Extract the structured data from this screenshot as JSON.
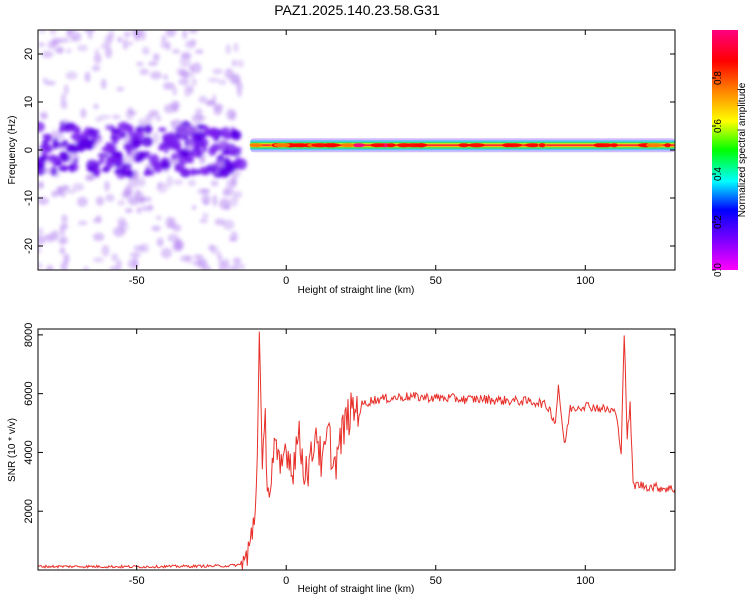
{
  "title": "PAZ1.2025.140.23.58.G31",
  "chart_data": [
    {
      "type": "heatmap",
      "xlabel": "Height of straight line (km)",
      "ylabel": "Frequency (Hz)",
      "xlim": [
        -83,
        130
      ],
      "ylim": [
        -25,
        25
      ],
      "x_ticks": [
        -50,
        0,
        50,
        100
      ],
      "y_ticks": [
        -20,
        -10,
        0,
        10,
        20
      ],
      "colorbar": {
        "label": "Normalized spectral amplitude",
        "range": [
          0,
          1
        ],
        "ticks": [
          0.0,
          0.2,
          0.4,
          0.6,
          0.8
        ],
        "colors": [
          "#ff00ff",
          "#8000ff",
          "#0000ff",
          "#00ffff",
          "#00ff00",
          "#ffff00",
          "#ff8000",
          "#ff0000",
          "#ff0080"
        ]
      },
      "noise_region": {
        "x_range": [
          -83,
          -15
        ],
        "frequency_spread_hz": [
          -25,
          25
        ],
        "concentrated_band_hz": [
          -5,
          5
        ],
        "amplitude_range": [
          0.05,
          0.4
        ]
      },
      "signal_line": {
        "x_range": [
          -12,
          130
        ],
        "frequency_hz": 1,
        "amplitude": 0.85
      }
    },
    {
      "type": "line",
      "xlabel": "Height of straight line (km)",
      "ylabel": "SNR (10 * v/v)",
      "xlim": [
        -83,
        130
      ],
      "ylim": [
        0,
        8200
      ],
      "x_ticks": [
        -50,
        0,
        50,
        100
      ],
      "y_ticks": [
        2000,
        4000,
        6000,
        8000
      ],
      "series": [
        {
          "color": "#e8302a",
          "x": [
            -83,
            -70,
            -50,
            -30,
            -20,
            -15,
            -13,
            -12,
            -11,
            -10,
            -9,
            -8,
            -7,
            -6,
            -5,
            -4,
            -3,
            -2,
            0,
            2,
            4,
            6,
            8,
            10,
            12,
            14,
            16,
            18,
            20,
            22,
            25,
            28,
            30,
            35,
            40,
            45,
            50,
            55,
            60,
            65,
            70,
            75,
            80,
            85,
            88,
            90,
            91,
            93,
            95,
            100,
            105,
            110,
            112,
            113,
            114,
            115,
            116,
            118,
            120,
            125,
            130
          ],
          "y": [
            120,
            120,
            110,
            130,
            140,
            180,
            400,
            800,
            1600,
            2600,
            8100,
            3200,
            4900,
            2600,
            3200,
            4200,
            3600,
            3300,
            4300,
            3400,
            4600,
            3500,
            3500,
            4900,
            3400,
            4700,
            3500,
            4300,
            5100,
            5400,
            5600,
            5750,
            5800,
            5850,
            5900,
            5880,
            5860,
            5850,
            5800,
            5820,
            5780,
            5760,
            5740,
            5700,
            5500,
            5000,
            6300,
            4200,
            5500,
            5600,
            5500,
            5400,
            4100,
            8100,
            4500,
            5600,
            2900,
            2900,
            2850,
            2800,
            2750
          ]
        }
      ]
    }
  ]
}
